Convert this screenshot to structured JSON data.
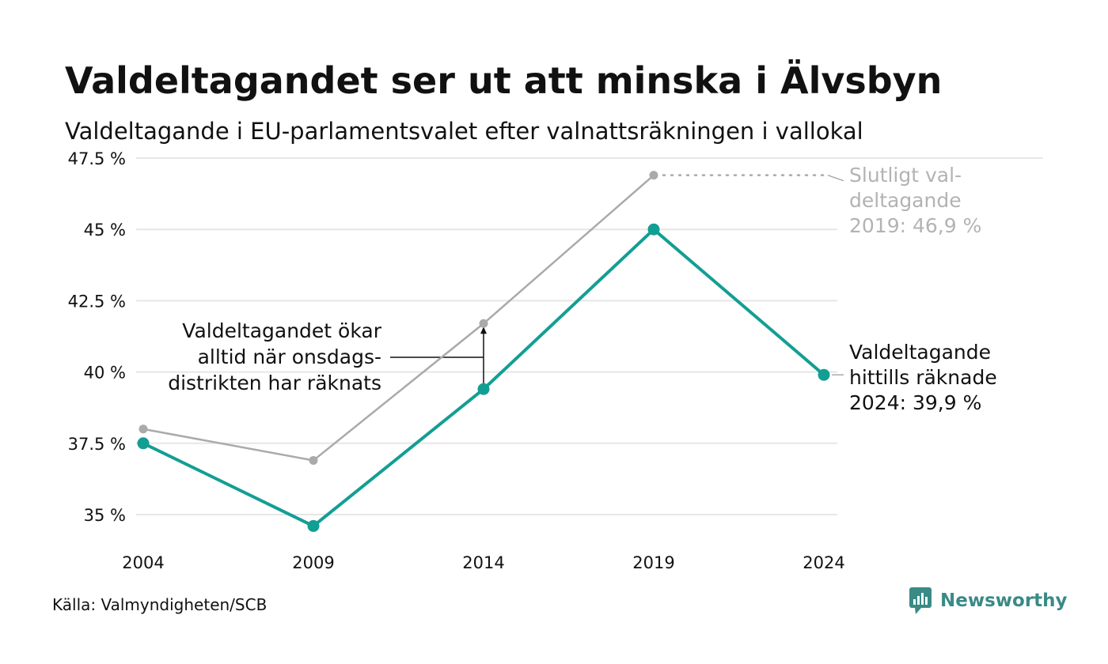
{
  "title": "Valdeltagandet ser ut att minska i Älvsbyn",
  "subtitle": "Valdeltagande i EU-parlamentsvalet efter valnattsräkningen i vallokal",
  "source": "Källa: Valmyndigheten/SCB",
  "brand": {
    "name": "Newsworthy",
    "icon": "newsworthy-logo-icon"
  },
  "colors": {
    "counted": "#139e94",
    "final": "#aaaaaa",
    "grid": "#e6e6e6",
    "text": "#111111",
    "muted": "#b3b3b3"
  },
  "chart_data": {
    "type": "line",
    "title": "Valdeltagandet ser ut att minska i Älvsbyn",
    "subtitle": "Valdeltagande i EU-parlamentsvalet efter valnattsräkningen i vallokal",
    "xlabel": "",
    "ylabel": "",
    "categories": [
      "2004",
      "2009",
      "2014",
      "2019",
      "2024"
    ],
    "ylim": [
      34.5,
      47.5
    ],
    "yticks": [
      35,
      37.5,
      40,
      42.5,
      45,
      47.5
    ],
    "ytick_labels": [
      "35 %",
      "37.5 %",
      "40 %",
      "42.5 %",
      "45 %",
      "47.5 %"
    ],
    "grid": true,
    "series": [
      {
        "key": "final",
        "values": [
          38.0,
          36.9,
          41.7,
          46.9,
          null
        ]
      },
      {
        "key": "counted",
        "values": [
          37.5,
          34.6,
          39.4,
          45.0,
          39.9
        ]
      }
    ],
    "annotations": {
      "final_label": [
        "Slutligt val-",
        "deltagande",
        "2019: 46,9 %"
      ],
      "counted_label": [
        "Valdeltagande",
        "hittills räknade",
        "2024: 39,9 %"
      ],
      "increase_note": [
        "Valdeltagandet ökar",
        "alltid när onsdags-",
        "distrikten har räknats"
      ]
    }
  }
}
